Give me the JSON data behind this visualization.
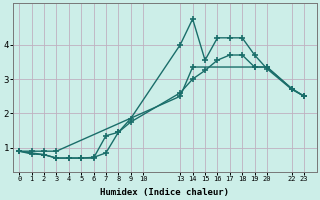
{
  "xlabel": "Humidex (Indice chaleur)",
  "bg_color": "#cceee8",
  "grid_color": "#c0b0c0",
  "line_color": "#1a6e6a",
  "marker": "+",
  "markersize": 4,
  "linewidth": 1.0,
  "markeredgewidth": 1.2,
  "xlim": [
    -0.5,
    24.0
  ],
  "ylim": [
    0.3,
    5.2
  ],
  "yticks": [
    1,
    2,
    3,
    4
  ],
  "ytick_labels": [
    "1",
    "2",
    "3",
    "4"
  ],
  "xtick_positions": [
    0,
    1,
    2,
    3,
    4,
    5,
    6,
    7,
    8,
    9,
    10,
    13,
    14,
    15,
    16,
    17,
    18,
    19,
    20,
    22,
    23
  ],
  "xtick_labels": [
    "0",
    "1",
    "2",
    "3",
    "4",
    "5",
    "6",
    "7",
    "8",
    "9",
    "10",
    "13",
    "14",
    "15",
    "16",
    "17",
    "18",
    "19",
    "20",
    "22",
    "23"
  ],
  "line1_x": [
    0,
    1,
    2,
    3,
    4,
    5,
    6,
    7,
    8,
    9,
    13,
    14,
    15,
    16,
    17,
    18,
    19,
    20,
    22,
    23
  ],
  "line1_y": [
    0.9,
    0.82,
    0.8,
    0.7,
    0.7,
    0.7,
    0.72,
    0.85,
    1.45,
    1.85,
    4.0,
    4.75,
    3.55,
    4.2,
    4.2,
    4.2,
    3.7,
    3.3,
    2.7,
    2.5
  ],
  "line2_x": [
    0,
    2,
    3,
    4,
    5,
    6,
    7,
    8,
    9,
    13,
    14,
    15,
    16,
    17,
    18,
    19,
    20,
    22,
    23
  ],
  "line2_y": [
    0.9,
    0.8,
    0.7,
    0.7,
    0.7,
    0.7,
    1.35,
    1.45,
    1.75,
    2.6,
    3.0,
    3.25,
    3.55,
    3.7,
    3.7,
    3.35,
    3.35,
    2.72,
    2.5
  ],
  "line3_x": [
    0,
    1,
    2,
    3,
    13,
    14,
    19,
    20,
    22,
    23
  ],
  "line3_y": [
    0.9,
    0.9,
    0.9,
    0.9,
    2.5,
    3.35,
    3.35,
    3.35,
    2.72,
    2.5
  ]
}
